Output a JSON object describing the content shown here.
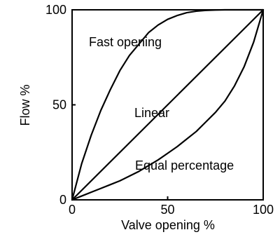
{
  "chart_data": {
    "type": "line",
    "title": "",
    "xlabel": "Valve opening %",
    "ylabel": "Flow %",
    "xlim": [
      0,
      100
    ],
    "ylim": [
      0,
      100
    ],
    "xticks": [
      "0",
      "50",
      "100"
    ],
    "yticks": [
      "0",
      "50",
      "100"
    ],
    "grid": false,
    "series": [
      {
        "name": "Fast opening",
        "x": [
          0,
          5,
          10,
          15,
          20,
          25,
          30,
          35,
          40,
          45,
          50,
          55,
          60,
          65,
          70,
          75,
          80,
          85,
          90,
          95,
          100
        ],
        "y": [
          0,
          19,
          34,
          47,
          58,
          68,
          76,
          82,
          88,
          92,
          95,
          97,
          98.5,
          99.3,
          99.7,
          99.9,
          100,
          100,
          100,
          100,
          100
        ]
      },
      {
        "name": "Linear",
        "x": [
          0,
          100
        ],
        "y": [
          0,
          100
        ]
      },
      {
        "name": "Equal percentage",
        "x": [
          0,
          5,
          10,
          15,
          20,
          25,
          30,
          35,
          40,
          45,
          50,
          55,
          60,
          65,
          70,
          75,
          80,
          85,
          90,
          95,
          100
        ],
        "y": [
          0,
          2,
          4,
          6,
          8,
          10,
          12.5,
          15,
          18,
          21,
          24.5,
          28,
          32,
          36,
          41,
          46,
          52,
          60,
          70,
          83,
          100
        ]
      }
    ],
    "line_color": "#000000"
  }
}
